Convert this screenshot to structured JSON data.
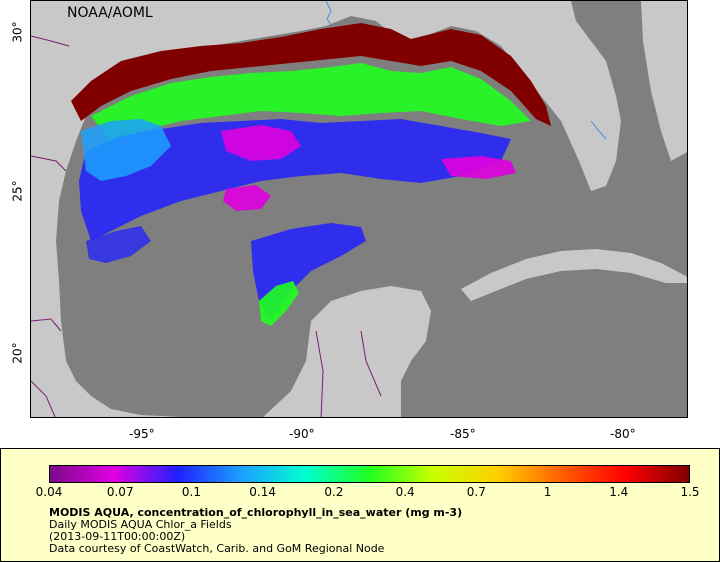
{
  "map": {
    "credit": "NOAA/AOML",
    "lon_ticks": [
      "-95°",
      "-90°",
      "-85°",
      "-80°"
    ],
    "lat_ticks": [
      "30°",
      "25°",
      "20°"
    ],
    "colors": {
      "land": "#c8c8c8",
      "no_data_water": "#7f7f7f",
      "border": "#7a1e70",
      "river": "#4a90d9"
    }
  },
  "legend": {
    "colorbar_ticks": [
      "0.04",
      "0.07",
      "0.1",
      "0.14",
      "0.2",
      "0.4",
      "0.7",
      "1",
      "1.4",
      "1.5"
    ],
    "colors": [
      "#7b0a8b",
      "#e000e0",
      "#2020ff",
      "#1ca0ff",
      "#00ffd0",
      "#20ff20",
      "#c8ff00",
      "#ffd000",
      "#ff6000",
      "#ff0000",
      "#800000"
    ],
    "title": "MODIS AQUA, concentration_of_chlorophyll_in_sea_water (mg m-3)",
    "line2": "Daily MODIS AQUA Chlor_a Fields",
    "line3": "(2013-09-11T00:00:00Z)",
    "line4": "Data courtesy of CoastWatch, Carib. and GoM Regional Node"
  }
}
